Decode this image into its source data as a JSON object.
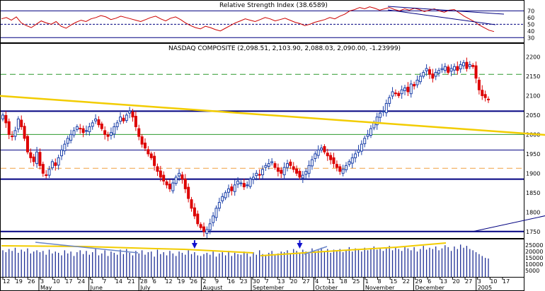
{
  "colors": {
    "rsi_line": "#cc0000",
    "price_up": "#1a3fa8",
    "price_down": "#dd0000",
    "volume": "#1f2f96",
    "trend_yellow": "#f2cc00",
    "orange_dash": "#f0a040",
    "green_dash": "#2e9a2e",
    "navy_line": "#000080",
    "blue_arrow": "#1010cc"
  },
  "chart_data": [
    {
      "type": "line",
      "panel": "rsi",
      "title": "Relative Strength Index (38.6589)",
      "yticks": [
        30,
        40,
        50,
        60,
        70
      ],
      "ylim": [
        25,
        82
      ],
      "horizontal_lines": [
        {
          "value": 70,
          "style": "solid"
        },
        {
          "value": 50,
          "style": "dashed"
        },
        {
          "value": 30,
          "style": "solid"
        }
      ],
      "series": [
        {
          "values": [
            58,
            60,
            56,
            61,
            52,
            48,
            45,
            50,
            55,
            52,
            50,
            54,
            47,
            44,
            49,
            53,
            56,
            54,
            58,
            60,
            63,
            61,
            57,
            59,
            62,
            60,
            58,
            56,
            54,
            57,
            60,
            62,
            58,
            55,
            59,
            61,
            57,
            52,
            48,
            45,
            43,
            47,
            45,
            42,
            40,
            44,
            48,
            52,
            55,
            58,
            56,
            54,
            57,
            60,
            58,
            55,
            57,
            59,
            56,
            53,
            51,
            48,
            50,
            53,
            55,
            57,
            60,
            58,
            62,
            65,
            70,
            72,
            75,
            73,
            76,
            74,
            71,
            73,
            75,
            72,
            70,
            73,
            71,
            74,
            72,
            69,
            71,
            73,
            70,
            68,
            71,
            72,
            67,
            62,
            58,
            54,
            49,
            45,
            41,
            39
          ]
        }
      ]
    },
    {
      "type": "candlestick",
      "panel": "price",
      "title": "NASDAQ COMPOSITE (2,098.51, 2,103.90, 2,088.03, 2,090.00, -1.23999)",
      "ylim": [
        1735,
        2230
      ],
      "yticks": [
        1750,
        1800,
        1850,
        1900,
        1950,
        2000,
        2050,
        2100,
        2150,
        2200
      ],
      "xticks": [
        "12",
        "19",
        "26",
        "3",
        "10",
        "17",
        "24",
        "1",
        "7",
        "14",
        "21",
        "28",
        "6",
        "12",
        "19",
        "26",
        "2",
        "9",
        "16",
        "23",
        "30",
        "7",
        "13",
        "20",
        "27",
        "4",
        "11",
        "18",
        "25",
        "1",
        "8",
        "15",
        "22",
        "29",
        "6",
        "13",
        "20",
        "27",
        "3",
        "10",
        "17"
      ],
      "month_labels": [
        "May",
        "June",
        "July",
        "August",
        "September",
        "October",
        "November",
        "December",
        "2005"
      ],
      "horizontal_lines": [
        {
          "value": 2060,
          "style": "solid-bold"
        },
        {
          "value": 2000,
          "style": "solid"
        },
        {
          "value": 1960,
          "style": "solid"
        },
        {
          "value": 1885,
          "style": "solid-bold"
        },
        {
          "value": 1750,
          "style": "solid-bold"
        },
        {
          "value": 2155,
          "style": "dash-green"
        },
        {
          "value": 1913,
          "style": "dash-orange"
        }
      ],
      "trendlines": [
        {
          "name": "yellow-downtrend",
          "start": [
            -5,
            2100
          ],
          "end": [
            305,
            1925
          ]
        },
        {
          "name": "blue-uptrend",
          "start": [
            152,
            1750
          ],
          "end": [
            380,
            2145
          ]
        },
        {
          "name": "orange-short",
          "start": [
            228,
            1900
          ],
          "end": [
            268,
            1912
          ]
        }
      ],
      "closes": [
        2050,
        2030,
        2000,
        1995,
        2010,
        2040,
        2020,
        1990,
        1955,
        1940,
        1930,
        1955,
        1920,
        1900,
        1895,
        1910,
        1930,
        1920,
        1940,
        1960,
        1975,
        1990,
        2000,
        2010,
        2020,
        2015,
        2005,
        2010,
        2020,
        2030,
        2040,
        2025,
        2015,
        2000,
        1995,
        2005,
        2020,
        2030,
        2045,
        2035,
        2050,
        2060,
        2045,
        2020,
        1995,
        1975,
        1965,
        1950,
        1940,
        1920,
        1905,
        1890,
        1880,
        1870,
        1860,
        1875,
        1890,
        1900,
        1885,
        1860,
        1835,
        1810,
        1790,
        1770,
        1760,
        1750,
        1755,
        1770,
        1790,
        1810,
        1825,
        1840,
        1850,
        1860,
        1855,
        1870,
        1880,
        1875,
        1865,
        1870,
        1885,
        1890,
        1900,
        1895,
        1910,
        1920,
        1925,
        1930,
        1915,
        1905,
        1900,
        1915,
        1925,
        1920,
        1910,
        1900,
        1890,
        1895,
        1905,
        1920,
        1935,
        1950,
        1960,
        1965,
        1955,
        1945,
        1935,
        1925,
        1915,
        1905,
        1910,
        1920,
        1930,
        1940,
        1950,
        1960,
        1975,
        1990,
        2000,
        2015,
        2030,
        2045,
        2055,
        2060,
        2080,
        2095,
        2110,
        2105,
        2100,
        2115,
        2120,
        2110,
        2130,
        2125,
        2140,
        2150,
        2160,
        2170,
        2155,
        2145,
        2160,
        2165,
        2170,
        2175,
        2160,
        2170,
        2175,
        2165,
        2180,
        2185,
        2170,
        2180,
        2175,
        2145,
        2115,
        2100,
        2095,
        2090
      ]
    },
    {
      "type": "bar",
      "panel": "volume",
      "yticks": [
        5000,
        10000,
        15000,
        20000,
        25000
      ],
      "ylim": [
        0,
        29000
      ],
      "markers": [
        {
          "name": "volume-arrow-august",
          "index": 62
        },
        {
          "name": "volume-arrow-october",
          "index": 96
        }
      ],
      "values": [
        21000,
        19500,
        22000,
        20500,
        23000,
        19000,
        21500,
        20000,
        22500,
        18500,
        20000,
        21000,
        19500,
        20500,
        17500,
        21500,
        18500,
        20000,
        19000,
        17000,
        21000,
        18500,
        20000,
        16500,
        19500,
        21000,
        18000,
        20500,
        17500,
        19500,
        22000,
        17000,
        18500,
        21000,
        16500,
        20000,
        19000,
        17500,
        21500,
        18000,
        22000,
        19000,
        17000,
        20500,
        18500,
        21000,
        17500,
        19500,
        20000,
        16000,
        21500,
        18000,
        19500,
        17000,
        20500,
        18500,
        16500,
        20000,
        19000,
        17500,
        21000,
        18000,
        19500,
        17000,
        16500,
        18000,
        19000,
        17500,
        20000,
        16000,
        18500,
        19500,
        17000,
        20500,
        16500,
        19000,
        18000,
        17500,
        20000,
        18500,
        16000,
        19500,
        17500,
        21000,
        18000,
        16500,
        19000,
        20500,
        17000,
        18500,
        20000,
        19500,
        21000,
        18500,
        22000,
        20500,
        19000,
        21500,
        20000,
        18500,
        22500,
        19500,
        21000,
        23000,
        20000,
        22000,
        19000,
        21500,
        20500,
        22000,
        19500,
        21000,
        23500,
        20000,
        22500,
        21500,
        20000,
        23000,
        21000,
        22500,
        24000,
        21500,
        23000,
        20500,
        22500,
        24500,
        21000,
        23500,
        22000,
        20500,
        24000,
        22500,
        21000,
        23500,
        20000,
        22000,
        24500,
        21500,
        23000,
        22000,
        24000,
        21000,
        22500,
        25000,
        23500,
        20500,
        24000,
        22000,
        25500,
        23000,
        24500,
        22000,
        21000,
        19500,
        18000,
        16500,
        15000,
        14500
      ]
    }
  ],
  "xaxis": {
    "day_labels": [
      "12",
      "19",
      "26",
      "3",
      "10",
      "17",
      "24",
      "1",
      "7",
      "14",
      "21",
      "28",
      "6",
      "12",
      "19",
      "26",
      "2",
      "9",
      "16",
      "23",
      "30",
      "7",
      "13",
      "20",
      "27",
      "4",
      "11",
      "18",
      "25",
      "1",
      "8",
      "15",
      "22",
      "29",
      "6",
      "13",
      "20",
      "27",
      "3",
      "10",
      "17"
    ],
    "month_labels": [
      "May",
      "June",
      "July",
      "August",
      "September",
      "October",
      "November",
      "December",
      "2005"
    ]
  }
}
